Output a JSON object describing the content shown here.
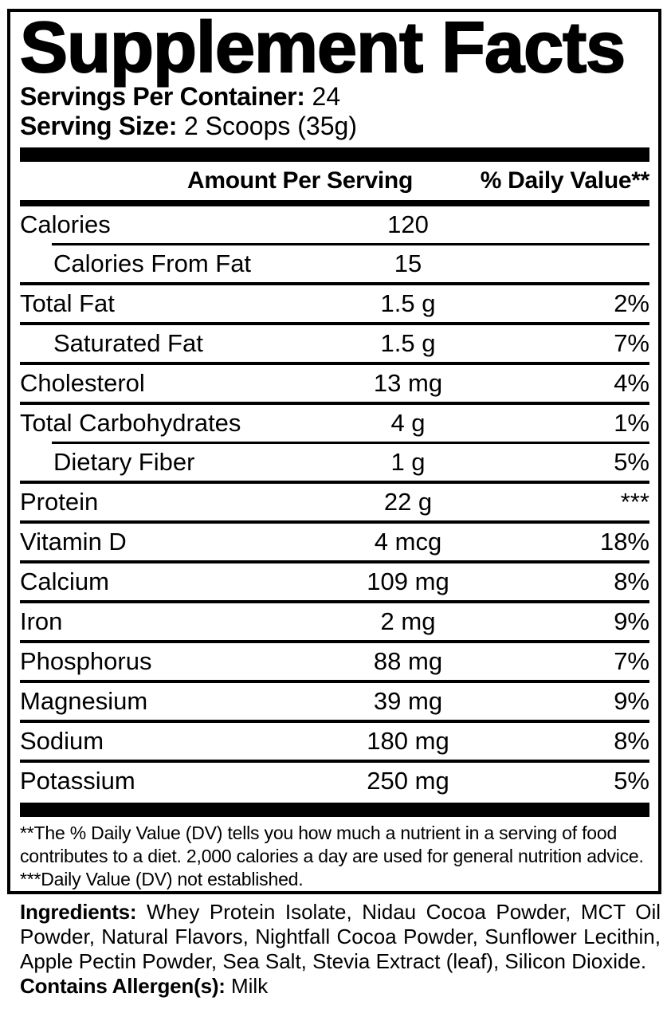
{
  "label": {
    "title": "Supplement Facts",
    "servings": {
      "label": "Servings Per Container:",
      "value": "24"
    },
    "serving_size": {
      "label": "Serving Size:",
      "value": "2 Scoops (35g)"
    },
    "columns": {
      "amount": "Amount Per Serving",
      "daily_value": "% Daily Value**"
    },
    "rows": [
      {
        "name": "Calories",
        "amount": "120",
        "dv": ""
      },
      {
        "name": "Calories From Fat",
        "amount": "15",
        "dv": ""
      },
      {
        "name": "Total Fat",
        "amount": "1.5 g",
        "dv": "2%"
      },
      {
        "name": "Saturated Fat",
        "amount": "1.5 g",
        "dv": "7%"
      },
      {
        "name": "Cholesterol",
        "amount": "13 mg",
        "dv": "4%"
      },
      {
        "name": "Total Carbohydrates",
        "amount": "4 g",
        "dv": "1%"
      },
      {
        "name": "Dietary Fiber",
        "amount": "1 g",
        "dv": "5%"
      },
      {
        "name": "Protein",
        "amount": "22 g",
        "dv": "***"
      },
      {
        "name": "Vitamin D",
        "amount": "4 mcg",
        "dv": "18%"
      },
      {
        "name": "Calcium",
        "amount": "109 mg",
        "dv": "8%"
      },
      {
        "name": "Iron",
        "amount": "2 mg",
        "dv": "9%"
      },
      {
        "name": "Phosphorus",
        "amount": "88 mg",
        "dv": "7%"
      },
      {
        "name": "Magnesium",
        "amount": "39 mg",
        "dv": "9%"
      },
      {
        "name": "Sodium",
        "amount": "180 mg",
        "dv": "8%"
      },
      {
        "name": "Potassium",
        "amount": "250 mg",
        "dv": "5%"
      }
    ],
    "footnotes": {
      "daily_value_note": "**The % Daily Value (DV) tells you how much a nutrient in a serving of food contributes to a diet. 2,000 calories a day are used for general nutrition advice.",
      "not_established_note": "***Daily Value (DV) not established."
    }
  },
  "ingredients": {
    "label": "Ingredients:",
    "list": "Whey Protein Isolate, Nidau Cocoa Powder, MCT Oil Powder, Natural Flavors, Nightfall Cocoa Powder, Sunflower Lecithin, Apple Pectin Powder, Sea Salt, Stevia Extract (leaf), Silicon Dioxide.",
    "allergen_label": "Contains Allergen(s):",
    "allergen_value": "Milk"
  },
  "colors": {
    "text": "#000000",
    "background": "#ffffff"
  }
}
